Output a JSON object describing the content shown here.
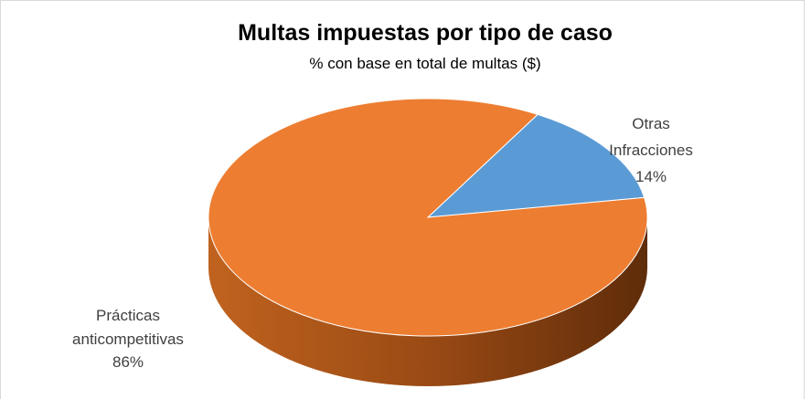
{
  "chart_data": {
    "type": "pie",
    "title": "Multas impuestas por tipo de caso",
    "subtitle": "% con base en total de multas ($)",
    "categories": [
      "Otras Infracciones",
      "Prácticas anticompetitivas"
    ],
    "values": [
      14,
      86
    ],
    "value_labels": [
      "14%",
      "86%"
    ],
    "colors": [
      "#5b9bd5",
      "#ed7d31"
    ]
  }
}
